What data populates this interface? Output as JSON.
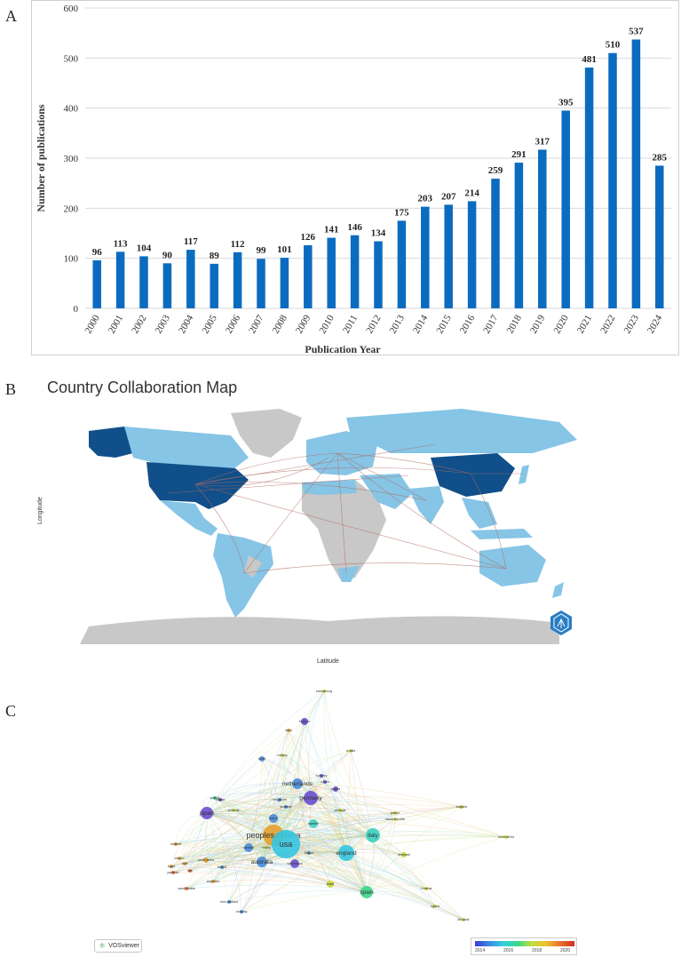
{
  "panels": {
    "a": "A",
    "b": "B",
    "c": "C"
  },
  "chart_data": [
    {
      "type": "bar",
      "categories": [
        "2000",
        "2001",
        "2002",
        "2003",
        "2004",
        "2005",
        "2006",
        "2007",
        "2008",
        "2009",
        "2010",
        "2011",
        "2012",
        "2013",
        "2014",
        "2015",
        "2016",
        "2017",
        "2018",
        "2019",
        "2020",
        "2021",
        "2022",
        "2023",
        "2024"
      ],
      "values": [
        96,
        113,
        104,
        90,
        117,
        89,
        112,
        99,
        101,
        126,
        141,
        146,
        134,
        175,
        203,
        207,
        214,
        259,
        291,
        317,
        395,
        481,
        510,
        537,
        285
      ],
      "xlabel": "Publication Year",
      "ylabel": "Number of  publications",
      "ylim": [
        0,
        600
      ],
      "yticks": [
        0,
        100,
        200,
        300,
        400,
        500,
        600
      ],
      "color": "#0b6cbf",
      "grid": true
    }
  ],
  "map": {
    "title": "Country Collaboration Map",
    "xlabel": "Latitude",
    "ylabel": "Longitude",
    "colors": {
      "none": "#c8c8c8",
      "low": "#86c5e6",
      "high": "#104f8a",
      "link": "#b06a5e"
    }
  },
  "network": {
    "labels": [
      "luxembourg",
      "india",
      "belgium",
      "israel",
      "norway",
      "sweden",
      "taiwan",
      "croatia",
      "hungary",
      "netherlands",
      "russia",
      "austria",
      "germany",
      "japan",
      "slovenia",
      "singapore",
      "portugal",
      "scotland",
      "greece",
      "czech republic",
      "france",
      "bulgaria",
      "peoples r china",
      "italy",
      "canada",
      "turkey",
      "usa",
      "south africa",
      "finland",
      "australia",
      "switzerland",
      "england",
      "denmark",
      "mexico",
      "chile",
      "south korea",
      "brazil",
      "argentina",
      "new zealand",
      "spain",
      "uruguay",
      "thailand",
      "egypt",
      "iran",
      "pakistan",
      "saudi arabia",
      "poland",
      "romania",
      "lithuania",
      "cyprus",
      "ireland"
    ],
    "legend_ticks": [
      "2014",
      "2016",
      "2018",
      "2020"
    ],
    "badge": "VOSviewer"
  }
}
